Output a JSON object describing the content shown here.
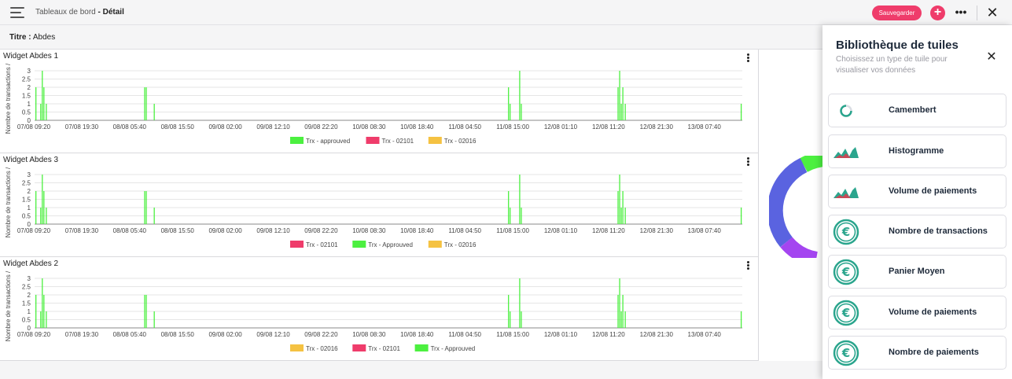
{
  "header": {
    "breadcrumb_parent": "Tableaux de bord",
    "breadcrumb_sep": " - ",
    "breadcrumb_current": "Détail",
    "save_label": "Sauvegarder",
    "add_label": "+",
    "more_label": "•••",
    "close_label": "✕"
  },
  "title_row": {
    "label": "Titre :",
    "value": "Abdes"
  },
  "colors": {
    "accent": "#ef3c6b",
    "green": "#4cf040",
    "pink": "#ef3c6b",
    "orange": "#f5c242",
    "teal": "#2aa58d",
    "donut_blue": "#5a63e0",
    "donut_purple": "#a445f0"
  },
  "widgets": [
    {
      "title": "Widget Abdes 1",
      "ylabel": "Nombre de transactions /",
      "legend": [
        {
          "name": "Trx - approuved",
          "color": "#4cf040"
        },
        {
          "name": "Trx - 02101",
          "color": "#ef3c6b"
        },
        {
          "name": "Trx - 02016",
          "color": "#f5c242"
        }
      ]
    },
    {
      "title": "Widget Abdes 3",
      "ylabel": "Nombre de transactions /",
      "legend": [
        {
          "name": "Trx - 02101",
          "color": "#ef3c6b"
        },
        {
          "name": "Trx - Approuved",
          "color": "#4cf040"
        },
        {
          "name": "Trx - 02016",
          "color": "#f5c242"
        }
      ]
    },
    {
      "title": "Widget Abdes 2",
      "ylabel": "Nombre de transactions /",
      "legend": [
        {
          "name": "Trx - 02016",
          "color": "#f5c242"
        },
        {
          "name": "Trx - 02101",
          "color": "#ef3c6b"
        },
        {
          "name": "Trx - Approuved",
          "color": "#4cf040"
        }
      ]
    }
  ],
  "chart_data": {
    "type": "bar",
    "ylim": [
      0,
      3
    ],
    "yticks": [
      "0",
      "0.5",
      "1",
      "1.5",
      "2",
      "2.5",
      "3"
    ],
    "xticks": [
      "07/08 09:20",
      "07/08 19:30",
      "08/08 05:40",
      "08/08 15:50",
      "09/08 02:00",
      "09/08 12:10",
      "09/08 22:20",
      "10/08 08:30",
      "10/08 18:40",
      "11/08 04:50",
      "11/08 15:00",
      "12/08 01:10",
      "12/08 11:20",
      "12/08 21:30",
      "13/08 07:40"
    ],
    "x_range": [
      0,
      88.5
    ],
    "series": [
      {
        "name": "Trx - approuved",
        "points": [
          [
            0.1,
            2
          ],
          [
            0.7,
            1
          ],
          [
            0.9,
            3
          ],
          [
            1.1,
            2
          ],
          [
            1.4,
            1
          ],
          [
            13.7,
            2
          ],
          [
            13.9,
            2
          ],
          [
            14.9,
            1
          ],
          [
            59.2,
            2
          ],
          [
            59.4,
            1
          ],
          [
            60.6,
            3
          ],
          [
            60.8,
            1
          ],
          [
            72.9,
            2
          ],
          [
            73.1,
            3
          ],
          [
            73.3,
            1
          ],
          [
            73.5,
            2
          ],
          [
            73.8,
            1
          ],
          [
            88.3,
            1
          ]
        ]
      }
    ]
  },
  "library": {
    "title": "Bibliothèque de tuiles",
    "subtitle": "Choisissez un type de tuile pour visualiser vos données",
    "close_label": "✕",
    "tiles": [
      {
        "label": "Camembert",
        "icon": "pie-chart-icon"
      },
      {
        "label": "Histogramme",
        "icon": "area-chart-icon"
      },
      {
        "label": "Volume de paiements",
        "icon": "area-chart-icon"
      },
      {
        "label": "Nombre de transactions",
        "icon": "euro-icon"
      },
      {
        "label": "Panier Moyen",
        "icon": "euro-icon"
      },
      {
        "label": "Volume de paiements",
        "icon": "euro-icon"
      },
      {
        "label": "Nombre de paiements",
        "icon": "euro-icon"
      }
    ]
  }
}
